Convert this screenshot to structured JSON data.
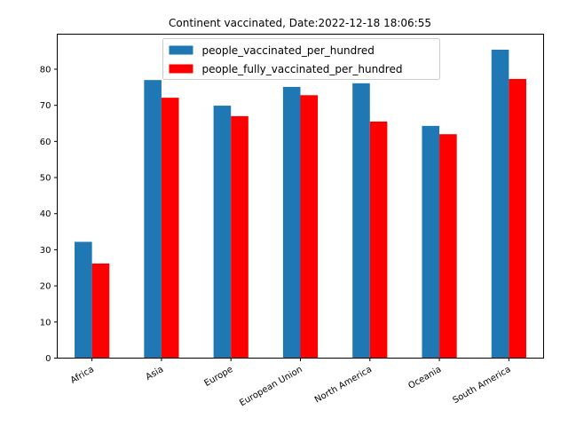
{
  "chart_data": {
    "type": "bar",
    "title": "Continent vaccinated, Date:2022-12-18 18:06:55",
    "xlabel": "",
    "ylabel": "",
    "categories": [
      "Africa",
      "Asia",
      "Europe",
      "European Union",
      "North America",
      "Oceania",
      "South America"
    ],
    "series": [
      {
        "name": "people_vaccinated_per_hundred",
        "color": "#1f77b4",
        "values": [
          32.2,
          77.0,
          69.9,
          75.1,
          76.1,
          64.3,
          85.4
        ]
      },
      {
        "name": "people_fully_vaccinated_per_hundred",
        "color": "#ff0000",
        "values": [
          26.2,
          72.1,
          67.0,
          72.8,
          65.5,
          62.0,
          77.3
        ]
      }
    ],
    "ylim": [
      0,
      89.7
    ],
    "yticks": [
      0,
      10,
      20,
      30,
      40,
      50,
      60,
      70,
      80
    ],
    "legend_position": "upper-center",
    "grid": false
  }
}
